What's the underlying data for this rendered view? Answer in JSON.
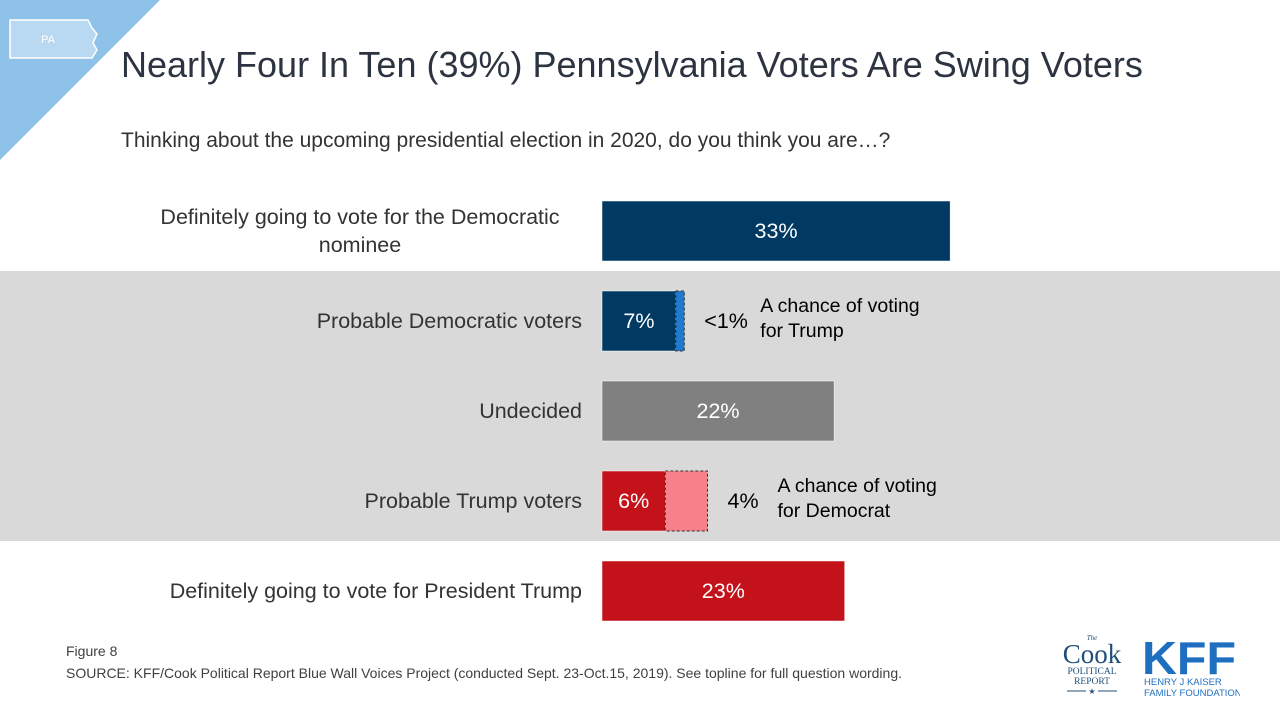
{
  "header": {
    "title": "Nearly Four In Ten (39%) Pennsylvania Voters Are Swing Voters",
    "question": "Thinking about the upcoming presidential election in 2020, do you think you are…?",
    "state_badge": "PA"
  },
  "colors": {
    "dem_dark": "#003a63",
    "dem_light": "#1f7ad1",
    "undecided": "#808080",
    "rep_dark": "#c4121b",
    "rep_light": "#f6818a",
    "band": "#d9d9d9",
    "corner": "#8fc2e9"
  },
  "chart_data": {
    "type": "bar",
    "orientation": "horizontal",
    "stacked": true,
    "xlim": [
      0,
      100
    ],
    "categories": [
      "Definitely going to vote for the Democratic nominee",
      "Probable Democratic voters",
      "Undecided",
      "Probable Trump voters",
      "Definitely going to vote for President Trump"
    ],
    "bars": [
      {
        "category": "Definitely going to vote for the Democratic nominee",
        "segments": [
          {
            "value": 33,
            "label": "33%",
            "color": "#003a63"
          }
        ]
      },
      {
        "category": "Probable Democratic voters",
        "segments": [
          {
            "value": 7,
            "label": "7%",
            "color": "#003a63"
          },
          {
            "value": 0.8,
            "label": "",
            "color": "#1f7ad1",
            "dashed": true
          }
        ],
        "side_value": "<1%",
        "side_note": [
          "A chance of voting",
          "for Trump"
        ]
      },
      {
        "category": "Undecided",
        "segments": [
          {
            "value": 22,
            "label": "22%",
            "color": "#808080"
          }
        ]
      },
      {
        "category": "Probable Trump voters",
        "segments": [
          {
            "value": 6,
            "label": "6%",
            "color": "#c4121b"
          },
          {
            "value": 4,
            "label": "",
            "color": "#f6818a",
            "dashed": true
          }
        ],
        "side_value": "4%",
        "side_note": [
          "A chance of voting",
          "for Democrat"
        ]
      },
      {
        "category": "Definitely going to vote for President Trump",
        "segments": [
          {
            "value": 23,
            "label": "23%",
            "color": "#c4121b"
          }
        ]
      }
    ]
  },
  "footer": {
    "figure": "Figure 8",
    "source": "SOURCE: KFF/Cook Political Report Blue Wall Voices Project (conducted Sept. 23-Oct.15, 2019). See topline for full question wording."
  },
  "logos": {
    "cook": {
      "the": "The",
      "name": "Cook",
      "line1": "POLITICAL",
      "line2": "REPORT"
    },
    "kff": {
      "name": "KFF",
      "line1": "HENRY J KAISER",
      "line2": "FAMILY FOUNDATION"
    }
  }
}
